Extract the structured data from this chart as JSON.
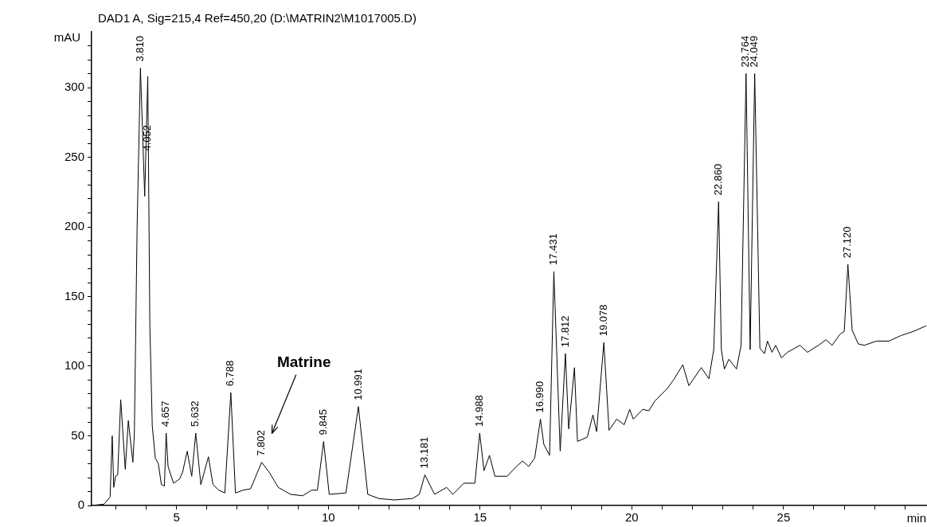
{
  "chart_data": {
    "type": "line",
    "title": "DAD1 A, Sig=215,4 Ref=450,20 (D:\\MATRIN2\\M1017005.D)",
    "xlabel": "min",
    "ylabel": "mAU",
    "color": "#000000",
    "marker": "none",
    "line_style": "solid",
    "grid": false,
    "legend": false,
    "xlim": [
      2.2,
      29.7
    ],
    "ylim": [
      0,
      340
    ],
    "xticks": [
      {
        "value": 3,
        "label": null
      },
      {
        "value": 4,
        "label": null
      },
      5,
      {
        "value": 6,
        "label": null
      },
      {
        "value": 7,
        "label": null
      },
      {
        "value": 8,
        "label": null
      },
      {
        "value": 9,
        "label": null
      },
      10,
      {
        "value": 11,
        "label": null
      },
      {
        "value": 12,
        "label": null
      },
      {
        "value": 13,
        "label": null
      },
      {
        "value": 14,
        "label": null
      },
      15,
      {
        "value": 16,
        "label": null
      },
      {
        "value": 17,
        "label": null
      },
      {
        "value": 18,
        "label": null
      },
      {
        "value": 19,
        "label": null
      },
      20,
      {
        "value": 21,
        "label": null
      },
      {
        "value": 22,
        "label": null
      },
      {
        "value": 23,
        "label": null
      },
      {
        "value": 24,
        "label": null
      },
      25,
      {
        "value": 26,
        "label": null
      },
      {
        "value": 27,
        "label": null
      },
      {
        "value": 28,
        "label": null
      },
      {
        "value": 29,
        "label": null
      }
    ],
    "yticks": [
      0,
      {
        "value": 10,
        "label": null
      },
      {
        "value": 20,
        "label": null
      },
      {
        "value": 30,
        "label": null
      },
      {
        "value": 40,
        "label": null
      },
      50,
      {
        "value": 60,
        "label": null
      },
      {
        "value": 70,
        "label": null
      },
      {
        "value": 80,
        "label": null
      },
      {
        "value": 90,
        "label": null
      },
      100,
      {
        "value": 110,
        "label": null
      },
      {
        "value": 120,
        "label": null
      },
      {
        "value": 130,
        "label": null
      },
      {
        "value": 140,
        "label": null
      },
      150,
      {
        "value": 160,
        "label": null
      },
      {
        "value": 170,
        "label": null
      },
      {
        "value": 180,
        "label": null
      },
      {
        "value": 190,
        "label": null
      },
      200,
      {
        "value": 210,
        "label": null
      },
      {
        "value": 220,
        "label": null
      },
      {
        "value": 230,
        "label": null
      },
      {
        "value": 240,
        "label": null
      },
      250,
      {
        "value": 260,
        "label": null
      },
      {
        "value": 270,
        "label": null
      },
      {
        "value": 280,
        "label": null
      },
      {
        "value": 290,
        "label": null
      },
      300,
      {
        "value": 310,
        "label": null
      },
      {
        "value": 320,
        "label": null
      },
      {
        "value": 330,
        "label": null
      }
    ],
    "x": [
      2.21,
      2.61,
      2.81,
      2.88,
      2.93,
      2.99,
      3.06,
      3.16,
      3.31,
      3.41,
      3.56,
      3.61,
      3.7,
      3.81,
      3.95,
      4.052,
      4.12,
      4.2,
      4.3,
      4.4,
      4.5,
      4.6,
      4.657,
      4.72,
      4.9,
      5.1,
      5.2,
      5.35,
      5.5,
      5.632,
      5.8,
      6.05,
      6.2,
      6.39,
      6.59,
      6.788,
      6.94,
      7.19,
      7.44,
      7.802,
      8.05,
      8.35,
      8.76,
      9.15,
      9.45,
      9.64,
      9.845,
      10.03,
      10.58,
      10.991,
      11.3,
      11.67,
      12.17,
      12.77,
      13.0,
      13.181,
      13.5,
      13.9,
      14.1,
      14.47,
      14.83,
      14.988,
      15.13,
      15.31,
      15.49,
      15.89,
      16.2,
      16.4,
      16.6,
      16.8,
      16.99,
      17.1,
      17.29,
      17.431,
      17.64,
      17.812,
      17.92,
      18.11,
      18.21,
      18.53,
      18.72,
      18.84,
      19.078,
      19.25,
      19.5,
      19.75,
      19.93,
      20.05,
      20.36,
      20.56,
      20.76,
      21.17,
      21.37,
      21.68,
      21.88,
      22.29,
      22.54,
      22.7,
      22.86,
      22.95,
      23.05,
      23.2,
      23.45,
      23.6,
      23.764,
      23.9,
      24.049,
      24.22,
      24.37,
      24.47,
      24.62,
      24.74,
      24.93,
      25.13,
      25.54,
      25.79,
      26.15,
      26.4,
      26.6,
      26.86,
      27.0,
      27.12,
      27.26,
      27.46,
      27.66,
      28.06,
      28.47,
      28.87,
      29.28,
      29.7
    ],
    "values": [
      0,
      1,
      6,
      50,
      13,
      21,
      22,
      76,
      26,
      61,
      31,
      52,
      200,
      314,
      222,
      308,
      129,
      57,
      34,
      30,
      15,
      14,
      52,
      28,
      16,
      19,
      24,
      39,
      21,
      52,
      15,
      35,
      15,
      11,
      9,
      81,
      9,
      11,
      12,
      31,
      24,
      13,
      8,
      7,
      11,
      11,
      46,
      8,
      9,
      71,
      8,
      5,
      4,
      5,
      8,
      22,
      8,
      13,
      8,
      16,
      16,
      52,
      25,
      36,
      21,
      21,
      28,
      32,
      28,
      34,
      62,
      44,
      36,
      168,
      39,
      109,
      55,
      99,
      46,
      49,
      65,
      53,
      117,
      54,
      62,
      58,
      69,
      62,
      69,
      68,
      75,
      84,
      90,
      101,
      86,
      99,
      91,
      112,
      218,
      112,
      98,
      105,
      98,
      115,
      310,
      112,
      310,
      113,
      109,
      118,
      110,
      115,
      106,
      110,
      115,
      110,
      115,
      119,
      115,
      123,
      125,
      173,
      126,
      116,
      115,
      118,
      118,
      122,
      125,
      129
    ],
    "annotations": [
      {
        "text": "3.810",
        "x": 3.81,
        "y": 314
      },
      {
        "text": "4.052",
        "x": 4.052,
        "y": 250
      },
      {
        "text": "4.657",
        "x": 4.657,
        "y": 52
      },
      {
        "text": "5.632",
        "x": 5.632,
        "y": 52
      },
      {
        "text": "6.788",
        "x": 6.788,
        "y": 81
      },
      {
        "text": "7.802",
        "x": 7.802,
        "y": 31
      },
      {
        "text": "9.845",
        "x": 9.845,
        "y": 46
      },
      {
        "text": "10.991",
        "x": 10.991,
        "y": 71
      },
      {
        "text": "13.181",
        "x": 13.181,
        "y": 22
      },
      {
        "text": "14.988",
        "x": 14.988,
        "y": 52
      },
      {
        "text": "16.990",
        "x": 16.99,
        "y": 62
      },
      {
        "text": "17.431",
        "x": 17.431,
        "y": 168
      },
      {
        "text": "17.812",
        "x": 17.812,
        "y": 109
      },
      {
        "text": "19.078",
        "x": 19.078,
        "y": 117
      },
      {
        "text": "22.860",
        "x": 22.86,
        "y": 218
      },
      {
        "text": "23.764",
        "x": 23.764,
        "y": 310
      },
      {
        "text": "24.049",
        "x": 24.049,
        "y": 310
      },
      {
        "text": "27.120",
        "x": 27.12,
        "y": 173
      },
      "Matrine"
    ]
  }
}
